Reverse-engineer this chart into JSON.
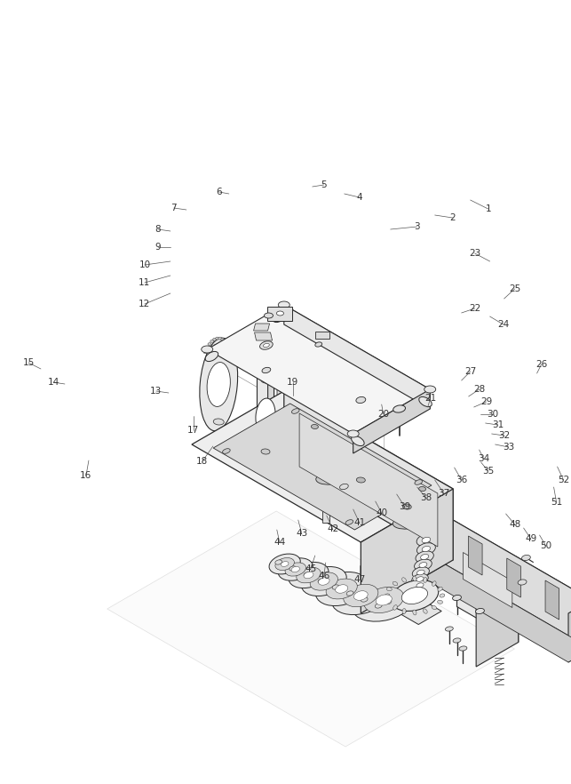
{
  "bg_color": "#ffffff",
  "line_color": "#2a2a2a",
  "label_color": "#444444",
  "fig_width": 6.43,
  "fig_height": 8.82,
  "dpi": 100
}
